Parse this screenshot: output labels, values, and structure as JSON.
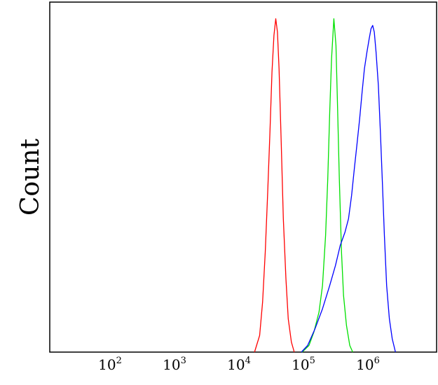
{
  "chart_data": {
    "type": "line",
    "title": "",
    "xlabel": "",
    "ylabel": "Count",
    "xscale": "log",
    "xlim": [
      10,
      10000000
    ],
    "ylim": [
      0,
      1.05
    ],
    "grid": false,
    "legend": "none",
    "xticks": [
      {
        "base": "10",
        "exp": "2"
      },
      {
        "base": "10",
        "exp": "3"
      },
      {
        "base": "10",
        "exp": "4"
      },
      {
        "base": "10",
        "exp": "5"
      },
      {
        "base": "10",
        "exp": "6"
      }
    ],
    "series": [
      {
        "color": "#ff0000",
        "points": [
          [
            15000,
            0
          ],
          [
            18000,
            0.05
          ],
          [
            20000,
            0.15
          ],
          [
            22000,
            0.3
          ],
          [
            24000,
            0.48
          ],
          [
            26000,
            0.66
          ],
          [
            28000,
            0.84
          ],
          [
            30000,
            0.95
          ],
          [
            32000,
            1.0
          ],
          [
            34000,
            0.96
          ],
          [
            36000,
            0.85
          ],
          [
            39000,
            0.62
          ],
          [
            42000,
            0.4
          ],
          [
            46000,
            0.22
          ],
          [
            50000,
            0.1
          ],
          [
            56000,
            0.03
          ],
          [
            62000,
            0
          ]
        ]
      },
      {
        "color": "#00e000",
        "points": [
          [
            82000,
            0
          ],
          [
            105000,
            0.02
          ],
          [
            125000,
            0.06
          ],
          [
            150000,
            0.12
          ],
          [
            170000,
            0.2
          ],
          [
            190000,
            0.35
          ],
          [
            205000,
            0.52
          ],
          [
            220000,
            0.72
          ],
          [
            235000,
            0.88
          ],
          [
            255000,
            1.0
          ],
          [
            275000,
            0.92
          ],
          [
            290000,
            0.75
          ],
          [
            310000,
            0.52
          ],
          [
            335000,
            0.3
          ],
          [
            360000,
            0.17
          ],
          [
            400000,
            0.08
          ],
          [
            450000,
            0.02
          ],
          [
            500000,
            0
          ]
        ]
      },
      {
        "color": "#0000ff",
        "points": [
          [
            80000,
            0
          ],
          [
            100000,
            0.02
          ],
          [
            130000,
            0.07
          ],
          [
            170000,
            0.13
          ],
          [
            220000,
            0.2
          ],
          [
            270000,
            0.26
          ],
          [
            320000,
            0.32
          ],
          [
            380000,
            0.36
          ],
          [
            430000,
            0.4
          ],
          [
            480000,
            0.47
          ],
          [
            530000,
            0.55
          ],
          [
            580000,
            0.62
          ],
          [
            640000,
            0.7
          ],
          [
            700000,
            0.78
          ],
          [
            760000,
            0.85
          ],
          [
            830000,
            0.9
          ],
          [
            900000,
            0.94
          ],
          [
            960000,
            0.97
          ],
          [
            1020000,
            0.98
          ],
          [
            1080000,
            0.96
          ],
          [
            1150000,
            0.9
          ],
          [
            1250000,
            0.8
          ],
          [
            1350000,
            0.65
          ],
          [
            1450000,
            0.5
          ],
          [
            1550000,
            0.35
          ],
          [
            1680000,
            0.2
          ],
          [
            1850000,
            0.1
          ],
          [
            2050000,
            0.04
          ],
          [
            2300000,
            0
          ]
        ]
      }
    ]
  }
}
